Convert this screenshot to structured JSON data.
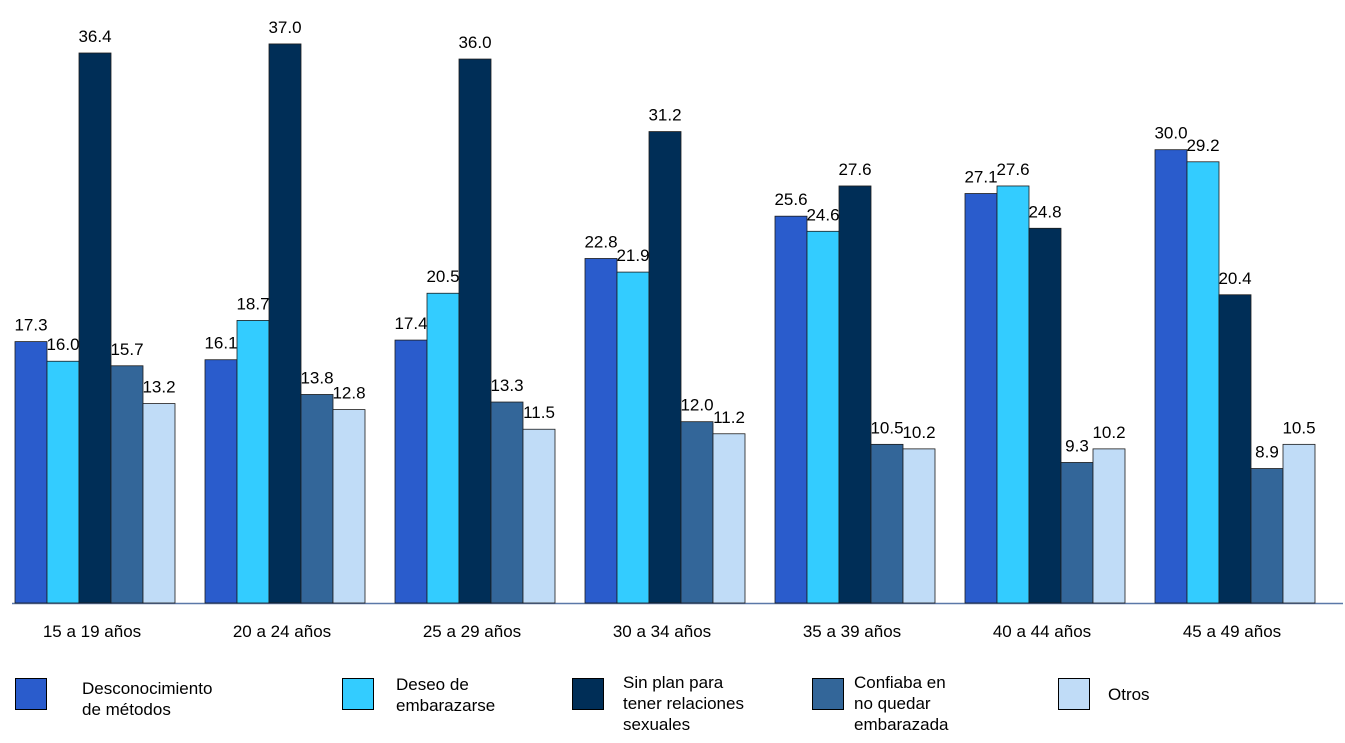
{
  "chart_data": {
    "type": "bar",
    "categories": [
      "15 a 19 años",
      "20 a 24 años",
      "25 a 29 años",
      "30 a 34 años",
      "35 a 39 años",
      "40 a 44 años",
      "45 a 49 años"
    ],
    "series": [
      {
        "name": "Desconocimiento\nde métodos",
        "color": "#2a5ccc",
        "values": [
          17.3,
          16.1,
          17.4,
          22.8,
          25.6,
          27.1,
          30.0
        ]
      },
      {
        "name": "Deseo de\nembarazarse",
        "color": "#33ccff",
        "values": [
          16.0,
          18.7,
          20.5,
          21.9,
          24.6,
          27.6,
          29.2
        ]
      },
      {
        "name": "Sin plan  para\ntener relaciones\nsexuales",
        "color": "#002e57",
        "values": [
          36.4,
          37.0,
          36.0,
          31.2,
          27.6,
          24.8,
          20.4
        ]
      },
      {
        "name": "Confiaba en\nno quedar\nembarazada",
        "color": "#336699",
        "values": [
          15.7,
          13.8,
          13.3,
          12.0,
          10.5,
          9.3,
          8.9
        ]
      },
      {
        "name": "Otros",
        "color": "#c0dcf7",
        "values": [
          13.2,
          12.8,
          11.5,
          11.2,
          10.2,
          10.2,
          10.5
        ]
      }
    ],
    "ylim": [
      0,
      40
    ],
    "grid": false,
    "legend_position": "bottom",
    "data_labels": true
  }
}
